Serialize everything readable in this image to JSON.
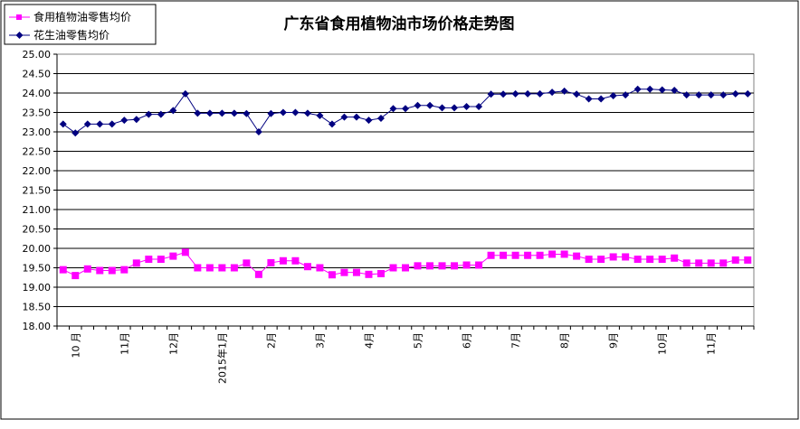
{
  "chart_data": {
    "type": "line",
    "title": "广东省食用植物油市场价格走势图",
    "xlabel": "",
    "ylabel": "",
    "ylim": [
      18.0,
      25.0
    ],
    "ytick_step": 0.5,
    "y_decimals": 2,
    "grid": "horizontal",
    "legend_position": "top-left",
    "x_tick_labels": [
      {
        "index": 1,
        "label": "10 月"
      },
      {
        "index": 5,
        "label": "11月"
      },
      {
        "index": 9,
        "label": "12月"
      },
      {
        "index": 13,
        "label": "2015年1月"
      },
      {
        "index": 17,
        "label": "2月"
      },
      {
        "index": 21,
        "label": "3月"
      },
      {
        "index": 25,
        "label": "4月"
      },
      {
        "index": 29,
        "label": "5月"
      },
      {
        "index": 33,
        "label": "6月"
      },
      {
        "index": 37,
        "label": "7月"
      },
      {
        "index": 41,
        "label": "8月"
      },
      {
        "index": 45,
        "label": "9月"
      },
      {
        "index": 49,
        "label": "10月"
      },
      {
        "index": 53,
        "label": "11月"
      }
    ],
    "series": [
      {
        "name": "食用植物油零售均价",
        "color": "#FF00FF",
        "marker": "square",
        "values": [
          19.45,
          19.3,
          19.47,
          19.43,
          19.43,
          19.45,
          19.62,
          19.72,
          19.72,
          19.8,
          19.9,
          19.5,
          19.5,
          19.5,
          19.5,
          19.62,
          19.33,
          19.63,
          19.68,
          19.68,
          19.53,
          19.5,
          19.32,
          19.38,
          19.38,
          19.33,
          19.35,
          19.5,
          19.5,
          19.55,
          19.55,
          19.55,
          19.55,
          19.57,
          19.57,
          19.82,
          19.82,
          19.82,
          19.82,
          19.82,
          19.85,
          19.85,
          19.8,
          19.72,
          19.72,
          19.78,
          19.78,
          19.72,
          19.72,
          19.72,
          19.75,
          19.62,
          19.62,
          19.62,
          19.62,
          19.7,
          19.7
        ]
      },
      {
        "name": "花生油零售均价",
        "color": "#000080",
        "marker": "diamond",
        "values": [
          23.2,
          22.97,
          23.2,
          23.2,
          23.2,
          23.3,
          23.32,
          23.45,
          23.45,
          23.55,
          23.98,
          23.48,
          23.48,
          23.48,
          23.48,
          23.47,
          23.0,
          23.47,
          23.5,
          23.5,
          23.48,
          23.42,
          23.2,
          23.38,
          23.38,
          23.3,
          23.35,
          23.6,
          23.6,
          23.68,
          23.68,
          23.62,
          23.62,
          23.65,
          23.65,
          23.97,
          23.97,
          23.98,
          23.98,
          23.98,
          24.02,
          24.05,
          23.97,
          23.85,
          23.85,
          23.93,
          23.95,
          24.1,
          24.1,
          24.08,
          24.07,
          23.95,
          23.95,
          23.95,
          23.95,
          23.98,
          23.98
        ]
      }
    ]
  }
}
